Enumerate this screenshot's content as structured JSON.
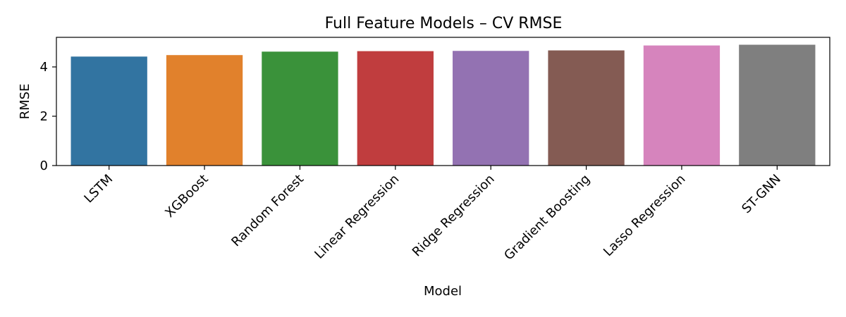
{
  "chart_data": {
    "type": "bar",
    "title": "Full Feature Models – CV RMSE",
    "xlabel": "Model",
    "ylabel": "RMSE",
    "categories": [
      "LSTM",
      "XGBoost",
      "Random Forest",
      "Linear Regression",
      "Ridge Regression",
      "Gradient Boosting",
      "Lasso Regression",
      "ST-GNN"
    ],
    "values": [
      4.42,
      4.48,
      4.62,
      4.64,
      4.65,
      4.67,
      4.87,
      4.9
    ],
    "colors": [
      "#3274a1",
      "#e1812c",
      "#3a923a",
      "#c03d3e",
      "#9372b2",
      "#845b53",
      "#d684bd",
      "#7f7f7f"
    ],
    "ylim": [
      0,
      5.2
    ],
    "yticks": [
      0,
      2,
      4
    ],
    "grid": false,
    "legend": "none"
  }
}
